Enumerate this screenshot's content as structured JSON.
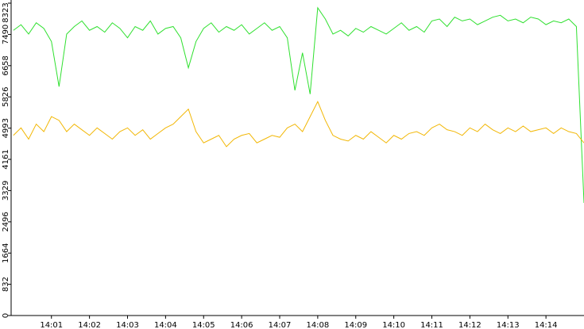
{
  "chart_data": {
    "type": "line",
    "x": [
      840.0,
      840.2,
      840.4,
      840.6,
      840.8,
      841.0,
      841.2,
      841.4,
      841.6,
      841.8,
      842.0,
      842.2,
      842.4,
      842.6,
      842.8,
      843.0,
      843.2,
      843.4,
      843.6,
      843.8,
      844.0,
      844.2,
      844.4,
      844.6,
      844.8,
      845.0,
      845.2,
      845.4,
      845.6,
      845.8,
      846.0,
      846.2,
      846.4,
      846.6,
      846.8,
      847.0,
      847.2,
      847.4,
      847.6,
      847.8,
      848.0,
      848.2,
      848.4,
      848.6,
      848.8,
      849.0,
      849.2,
      849.4,
      849.6,
      849.8,
      850.0,
      850.2,
      850.4,
      850.6,
      850.8,
      851.0,
      851.2,
      851.4,
      851.6,
      851.8,
      852.0,
      852.2,
      852.4,
      852.6,
      852.8,
      853.0,
      853.2,
      853.4,
      853.6,
      853.8,
      854.0,
      854.2,
      854.4,
      854.6,
      854.8,
      855.0
    ],
    "series": [
      {
        "color": "#2fe02f",
        "values": [
          7600,
          7750,
          7500,
          7800,
          7650,
          7300,
          6100,
          7500,
          7700,
          7850,
          7600,
          7700,
          7550,
          7800,
          7650,
          7400,
          7700,
          7600,
          7850,
          7500,
          7650,
          7700,
          7400,
          6600,
          7300,
          7650,
          7800,
          7550,
          7700,
          7600,
          7750,
          7500,
          7650,
          7800,
          7600,
          7700,
          7400,
          6000,
          7000,
          5900,
          8200,
          7900,
          7500,
          7600,
          7450,
          7650,
          7550,
          7700,
          7600,
          7500,
          7650,
          7800,
          7600,
          7700,
          7550,
          7850,
          7900,
          7700,
          7950,
          7850,
          7900,
          7750,
          7850,
          7950,
          8000,
          7850,
          7900,
          7800,
          7950,
          7900,
          7750,
          7850,
          7800,
          7900,
          7700,
          3000
        ]
      },
      {
        "color": "#f2b705",
        "values": [
          4800,
          5000,
          4700,
          5100,
          4900,
          5300,
          5200,
          4900,
          5100,
          4950,
          4800,
          5000,
          4850,
          4700,
          4900,
          5000,
          4800,
          4950,
          4700,
          4850,
          5000,
          5100,
          5300,
          5500,
          4900,
          4600,
          4700,
          4800,
          4500,
          4700,
          4800,
          4850,
          4600,
          4700,
          4800,
          4750,
          5000,
          5100,
          4900,
          5300,
          5700,
          5200,
          4800,
          4700,
          4650,
          4800,
          4700,
          4900,
          4750,
          4600,
          4800,
          4700,
          4850,
          4900,
          4800,
          5000,
          5100,
          4950,
          4900,
          4800,
          5000,
          4900,
          5100,
          4950,
          4850,
          5000,
          4900,
          5050,
          4900,
          4950,
          5000,
          4850,
          5000,
          4900,
          4850,
          4600
        ]
      }
    ],
    "xlim": [
      839.94,
      855.0
    ],
    "ylim": [
      0,
      8323
    ],
    "yticks": [
      0,
      832,
      1664,
      2496,
      3329,
      4161,
      4993,
      5826,
      6658,
      7490,
      8323
    ],
    "xticks": [
      {
        "value": 841,
        "label": "14:01"
      },
      {
        "value": 842,
        "label": "14:02"
      },
      {
        "value": 843,
        "label": "14:03"
      },
      {
        "value": 844,
        "label": "14:04"
      },
      {
        "value": 845,
        "label": "14:05"
      },
      {
        "value": 846,
        "label": "14:06"
      },
      {
        "value": 847,
        "label": "14:07"
      },
      {
        "value": 848,
        "label": "14:08"
      },
      {
        "value": 849,
        "label": "14:09"
      },
      {
        "value": 850,
        "label": "14:10"
      },
      {
        "value": 851,
        "label": "14:11"
      },
      {
        "value": 852,
        "label": "14:12"
      },
      {
        "value": 853,
        "label": "14:13"
      },
      {
        "value": 854,
        "label": "14:14"
      }
    ]
  }
}
